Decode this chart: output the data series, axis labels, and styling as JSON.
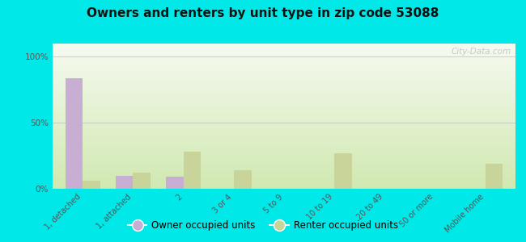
{
  "title": "Owners and renters by unit type in zip code 53088",
  "categories": [
    "1, detached",
    "1, attached",
    "2",
    "3 or 4",
    "5 to 9",
    "10 to 19",
    "20 to 49",
    "50 or more",
    "Mobile home"
  ],
  "owner_values": [
    84,
    10,
    9,
    0,
    0,
    0,
    0,
    0,
    0
  ],
  "renter_values": [
    6,
    12,
    28,
    14,
    0,
    27,
    0,
    0,
    19
  ],
  "owner_color": "#c9aed4",
  "renter_color": "#c8d49a",
  "background_outer": "#00e8e8",
  "grad_top": "#f5faf0",
  "grad_bottom": "#d0e8b0",
  "yticks": [
    0,
    50,
    100
  ],
  "ytick_labels": [
    "0%",
    "50%",
    "100%"
  ],
  "ylim": [
    0,
    110
  ],
  "watermark": "City-Data.com",
  "legend_owner": "Owner occupied units",
  "legend_renter": "Renter occupied units",
  "bar_width": 0.35
}
